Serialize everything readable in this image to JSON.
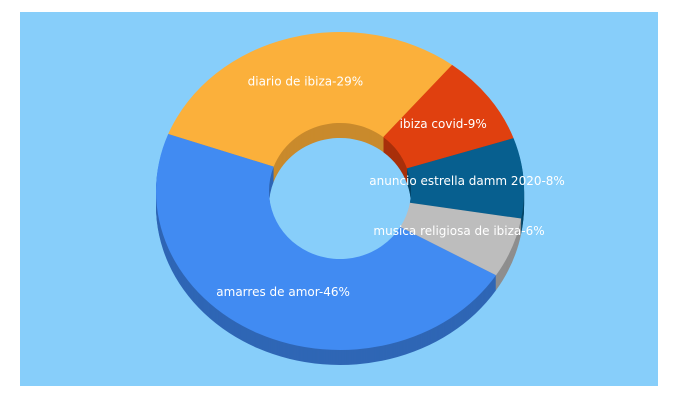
{
  "chart_data": {
    "type": "pie",
    "donut": true,
    "categories": [
      "diario de ibiza-29%",
      "ibiza covid-9%",
      "anuncio estrella damm 2020-8%",
      "musica religiosa de ibiza-6%",
      "amarres de amor-46%"
    ],
    "values": [
      29,
      9,
      8,
      6,
      46
    ],
    "colors": [
      "#fbb03b",
      "#e0400f",
      "#075f8f",
      "#bdbdbd",
      "#418bf2"
    ],
    "sides": [
      "#c98a2c",
      "#a8300b",
      "#054669",
      "#8e8e8e",
      "#2f66b5"
    ]
  }
}
